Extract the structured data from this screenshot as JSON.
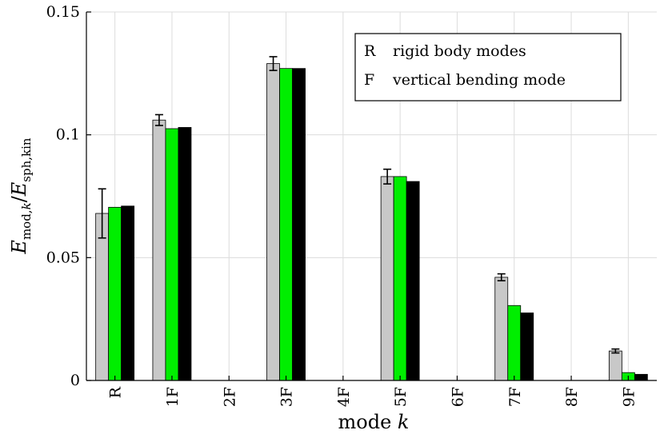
{
  "chart_data": {
    "type": "bar",
    "categories": [
      "R",
      "1F",
      "2F",
      "3F",
      "4F",
      "5F",
      "6F",
      "7F",
      "8F",
      "9F"
    ],
    "series": [
      {
        "color": "#c8c8c8",
        "values": [
          0.068,
          0.106,
          0.0,
          0.129,
          0.0,
          0.083,
          0.0,
          0.042,
          0.0,
          0.012
        ],
        "error": [
          0.01,
          0.0022,
          0.0,
          0.0028,
          0.0,
          0.003,
          0.0,
          0.0014,
          0.0,
          0.0008
        ]
      },
      {
        "color": "#00ee00",
        "values": [
          0.0705,
          0.1025,
          0.0,
          0.127,
          0.0,
          0.083,
          0.0,
          0.0305,
          0.0,
          0.0032
        ]
      },
      {
        "color": "#000000",
        "values": [
          0.071,
          0.103,
          0.0,
          0.127,
          0.0,
          0.081,
          0.0,
          0.0275,
          0.0,
          0.0025
        ]
      }
    ],
    "xlabel": "mode k",
    "ylabel": "E_mod,k / E_sph,kin",
    "ylim": [
      0,
      0.15
    ],
    "yticks": [
      0,
      0.05,
      0.1,
      0.15
    ],
    "ytick_labels": [
      "0",
      "0.05",
      "0.1",
      "0.15"
    ],
    "grid": true,
    "legend": {
      "placement": "top-right",
      "entries": [
        {
          "key": "R",
          "text": "rigid body modes"
        },
        {
          "key": "F",
          "text": "vertical bending mode"
        }
      ]
    }
  }
}
